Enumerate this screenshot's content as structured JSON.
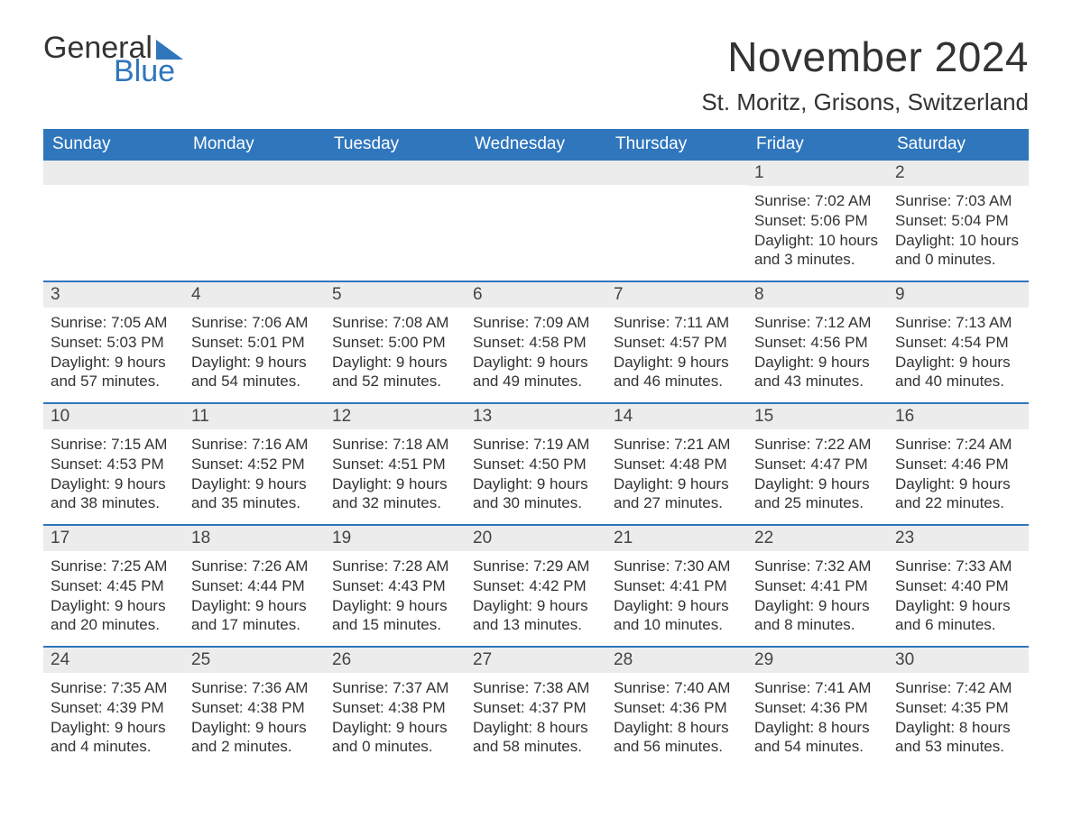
{
  "logo": {
    "text_general": "General",
    "text_blue": "Blue",
    "accent_color": "#2f76bc"
  },
  "title": "November 2024",
  "location": "St. Moritz, Grisons, Switzerland",
  "calendar": {
    "type": "table",
    "header_bg": "#2f76bc",
    "header_text_color": "#ffffff",
    "daynum_bg": "#ececec",
    "row_divider_color": "#2f76bc",
    "background_color": "#ffffff",
    "text_color": "#333333",
    "body_fontsize": 17,
    "header_fontsize": 19,
    "title_fontsize": 46,
    "location_fontsize": 26,
    "columns": [
      "Sunday",
      "Monday",
      "Tuesday",
      "Wednesday",
      "Thursday",
      "Friday",
      "Saturday"
    ],
    "weeks": [
      [
        null,
        null,
        null,
        null,
        null,
        {
          "day": "1",
          "sunrise": "Sunrise: 7:02 AM",
          "sunset": "Sunset: 5:06 PM",
          "daylight": "Daylight: 10 hours and 3 minutes."
        },
        {
          "day": "2",
          "sunrise": "Sunrise: 7:03 AM",
          "sunset": "Sunset: 5:04 PM",
          "daylight": "Daylight: 10 hours and 0 minutes."
        }
      ],
      [
        {
          "day": "3",
          "sunrise": "Sunrise: 7:05 AM",
          "sunset": "Sunset: 5:03 PM",
          "daylight": "Daylight: 9 hours and 57 minutes."
        },
        {
          "day": "4",
          "sunrise": "Sunrise: 7:06 AM",
          "sunset": "Sunset: 5:01 PM",
          "daylight": "Daylight: 9 hours and 54 minutes."
        },
        {
          "day": "5",
          "sunrise": "Sunrise: 7:08 AM",
          "sunset": "Sunset: 5:00 PM",
          "daylight": "Daylight: 9 hours and 52 minutes."
        },
        {
          "day": "6",
          "sunrise": "Sunrise: 7:09 AM",
          "sunset": "Sunset: 4:58 PM",
          "daylight": "Daylight: 9 hours and 49 minutes."
        },
        {
          "day": "7",
          "sunrise": "Sunrise: 7:11 AM",
          "sunset": "Sunset: 4:57 PM",
          "daylight": "Daylight: 9 hours and 46 minutes."
        },
        {
          "day": "8",
          "sunrise": "Sunrise: 7:12 AM",
          "sunset": "Sunset: 4:56 PM",
          "daylight": "Daylight: 9 hours and 43 minutes."
        },
        {
          "day": "9",
          "sunrise": "Sunrise: 7:13 AM",
          "sunset": "Sunset: 4:54 PM",
          "daylight": "Daylight: 9 hours and 40 minutes."
        }
      ],
      [
        {
          "day": "10",
          "sunrise": "Sunrise: 7:15 AM",
          "sunset": "Sunset: 4:53 PM",
          "daylight": "Daylight: 9 hours and 38 minutes."
        },
        {
          "day": "11",
          "sunrise": "Sunrise: 7:16 AM",
          "sunset": "Sunset: 4:52 PM",
          "daylight": "Daylight: 9 hours and 35 minutes."
        },
        {
          "day": "12",
          "sunrise": "Sunrise: 7:18 AM",
          "sunset": "Sunset: 4:51 PM",
          "daylight": "Daylight: 9 hours and 32 minutes."
        },
        {
          "day": "13",
          "sunrise": "Sunrise: 7:19 AM",
          "sunset": "Sunset: 4:50 PM",
          "daylight": "Daylight: 9 hours and 30 minutes."
        },
        {
          "day": "14",
          "sunrise": "Sunrise: 7:21 AM",
          "sunset": "Sunset: 4:48 PM",
          "daylight": "Daylight: 9 hours and 27 minutes."
        },
        {
          "day": "15",
          "sunrise": "Sunrise: 7:22 AM",
          "sunset": "Sunset: 4:47 PM",
          "daylight": "Daylight: 9 hours and 25 minutes."
        },
        {
          "day": "16",
          "sunrise": "Sunrise: 7:24 AM",
          "sunset": "Sunset: 4:46 PM",
          "daylight": "Daylight: 9 hours and 22 minutes."
        }
      ],
      [
        {
          "day": "17",
          "sunrise": "Sunrise: 7:25 AM",
          "sunset": "Sunset: 4:45 PM",
          "daylight": "Daylight: 9 hours and 20 minutes."
        },
        {
          "day": "18",
          "sunrise": "Sunrise: 7:26 AM",
          "sunset": "Sunset: 4:44 PM",
          "daylight": "Daylight: 9 hours and 17 minutes."
        },
        {
          "day": "19",
          "sunrise": "Sunrise: 7:28 AM",
          "sunset": "Sunset: 4:43 PM",
          "daylight": "Daylight: 9 hours and 15 minutes."
        },
        {
          "day": "20",
          "sunrise": "Sunrise: 7:29 AM",
          "sunset": "Sunset: 4:42 PM",
          "daylight": "Daylight: 9 hours and 13 minutes."
        },
        {
          "day": "21",
          "sunrise": "Sunrise: 7:30 AM",
          "sunset": "Sunset: 4:41 PM",
          "daylight": "Daylight: 9 hours and 10 minutes."
        },
        {
          "day": "22",
          "sunrise": "Sunrise: 7:32 AM",
          "sunset": "Sunset: 4:41 PM",
          "daylight": "Daylight: 9 hours and 8 minutes."
        },
        {
          "day": "23",
          "sunrise": "Sunrise: 7:33 AM",
          "sunset": "Sunset: 4:40 PM",
          "daylight": "Daylight: 9 hours and 6 minutes."
        }
      ],
      [
        {
          "day": "24",
          "sunrise": "Sunrise: 7:35 AM",
          "sunset": "Sunset: 4:39 PM",
          "daylight": "Daylight: 9 hours and 4 minutes."
        },
        {
          "day": "25",
          "sunrise": "Sunrise: 7:36 AM",
          "sunset": "Sunset: 4:38 PM",
          "daylight": "Daylight: 9 hours and 2 minutes."
        },
        {
          "day": "26",
          "sunrise": "Sunrise: 7:37 AM",
          "sunset": "Sunset: 4:38 PM",
          "daylight": "Daylight: 9 hours and 0 minutes."
        },
        {
          "day": "27",
          "sunrise": "Sunrise: 7:38 AM",
          "sunset": "Sunset: 4:37 PM",
          "daylight": "Daylight: 8 hours and 58 minutes."
        },
        {
          "day": "28",
          "sunrise": "Sunrise: 7:40 AM",
          "sunset": "Sunset: 4:36 PM",
          "daylight": "Daylight: 8 hours and 56 minutes."
        },
        {
          "day": "29",
          "sunrise": "Sunrise: 7:41 AM",
          "sunset": "Sunset: 4:36 PM",
          "daylight": "Daylight: 8 hours and 54 minutes."
        },
        {
          "day": "30",
          "sunrise": "Sunrise: 7:42 AM",
          "sunset": "Sunset: 4:35 PM",
          "daylight": "Daylight: 8 hours and 53 minutes."
        }
      ]
    ]
  }
}
